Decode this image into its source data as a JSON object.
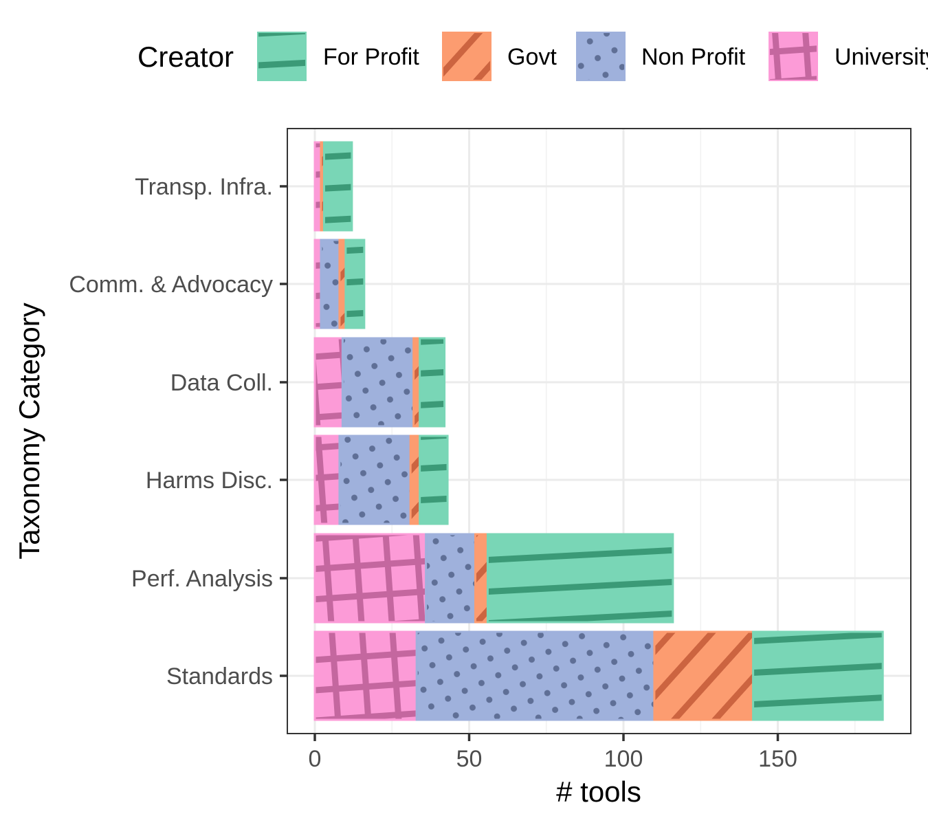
{
  "chart_data": {
    "type": "bar",
    "orientation": "horizontal",
    "stacked": true,
    "xlabel": "# tools",
    "ylabel": "Taxonomy Category",
    "xlim": [
      -9,
      184
    ],
    "x_ticks": [
      0,
      50,
      100,
      150
    ],
    "grid": true,
    "legend": {
      "title": "Creator",
      "position": "top"
    },
    "categories": [
      "Transp. Infra.",
      "Comm. & Advocacy",
      "Data Coll.",
      "Harms Disc.",
      "Perf. Analysis",
      "Standards"
    ],
    "series": [
      {
        "name": "University",
        "values": [
          2,
          2,
          9,
          8,
          36,
          33
        ],
        "color": "#fc9bd7",
        "pattern": "crosshatch",
        "pattern_color": "#c4679f"
      },
      {
        "name": "Non Profit",
        "values": [
          0,
          6,
          23,
          23,
          16,
          77
        ],
        "color": "#9fb1dc",
        "pattern": "dots",
        "pattern_color": "#5f6f96"
      },
      {
        "name": "Govt",
        "values": [
          1,
          2,
          2,
          3,
          4,
          32
        ],
        "color": "#fc9c70",
        "pattern": "diagonal",
        "pattern_color": "#cc6440"
      },
      {
        "name": "For Profit",
        "values": [
          9,
          6,
          8,
          9,
          60,
          42
        ],
        "color": "#79d6b6",
        "pattern": "stripes",
        "pattern_color": "#3b9a77"
      }
    ],
    "legend_order": [
      "For Profit",
      "Govt",
      "Non Profit",
      "University"
    ]
  }
}
